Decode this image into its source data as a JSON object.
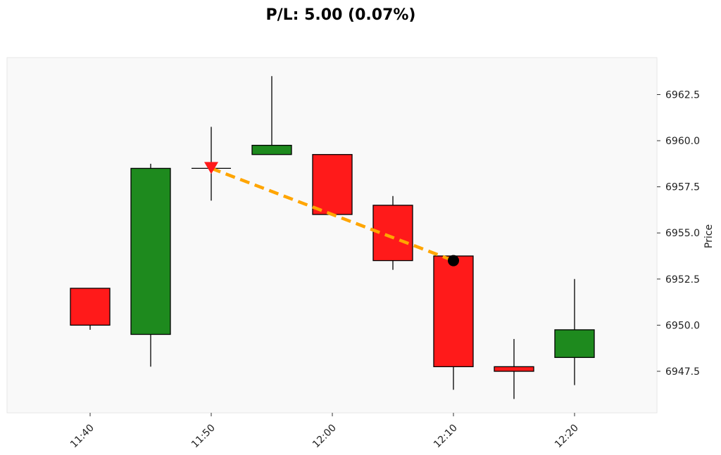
{
  "title": "P/L: 5.00 (0.07%)",
  "chart_data": {
    "type": "candlestick",
    "title": "P/L: 5.00 (0.07%)",
    "xlabel": "",
    "ylabel": "Price",
    "ylim": [
      6945.25,
      6964.5
    ],
    "x_ticks": [
      "11:40",
      "11:50",
      "12:00",
      "12:10",
      "12:20"
    ],
    "y_ticks": [
      "6947.5",
      "6950.0",
      "6952.5",
      "6955.0",
      "6957.5",
      "6960.0",
      "6962.5"
    ],
    "y_tick_values": [
      6947.5,
      6950.0,
      6952.5,
      6955.0,
      6957.5,
      6960.0,
      6962.5
    ],
    "candles": [
      {
        "time": "11:40",
        "open": 6952.0,
        "high": 6952.0,
        "low": 6949.75,
        "close": 6950.0
      },
      {
        "time": "11:45",
        "open": 6949.5,
        "high": 6958.75,
        "low": 6947.75,
        "close": 6958.5
      },
      {
        "time": "11:50",
        "open": 6958.5,
        "high": 6960.75,
        "low": 6956.75,
        "close": 6958.5
      },
      {
        "time": "11:55",
        "open": 6959.25,
        "high": 6963.5,
        "low": 6959.25,
        "close": 6959.75
      },
      {
        "time": "12:00",
        "open": 6959.25,
        "high": 6959.25,
        "low": 6956.0,
        "close": 6956.0
      },
      {
        "time": "12:05",
        "open": 6956.5,
        "high": 6957.0,
        "low": 6953.0,
        "close": 6953.5
      },
      {
        "time": "12:10",
        "open": 6953.75,
        "high": 6953.75,
        "low": 6946.5,
        "close": 6947.75
      },
      {
        "time": "12:15",
        "open": 6947.75,
        "high": 6949.25,
        "low": 6946.0,
        "close": 6947.5
      },
      {
        "time": "12:20",
        "open": 6948.25,
        "high": 6952.5,
        "low": 6946.75,
        "close": 6949.75
      }
    ],
    "trade": {
      "entry": {
        "time": "11:50",
        "price": 6958.5,
        "marker": "down-triangle"
      },
      "exit": {
        "time": "12:10",
        "price": 6953.5,
        "marker": "circle"
      }
    },
    "grid": false
  },
  "colors": {
    "up": "#1e8a1e",
    "down": "#ff1a1a",
    "trade_line": "#ffa500",
    "entry_marker": "#ff1a1a",
    "exit_marker": "#000000",
    "plot_bg": "#f9f9f9",
    "wick": "#000000"
  }
}
